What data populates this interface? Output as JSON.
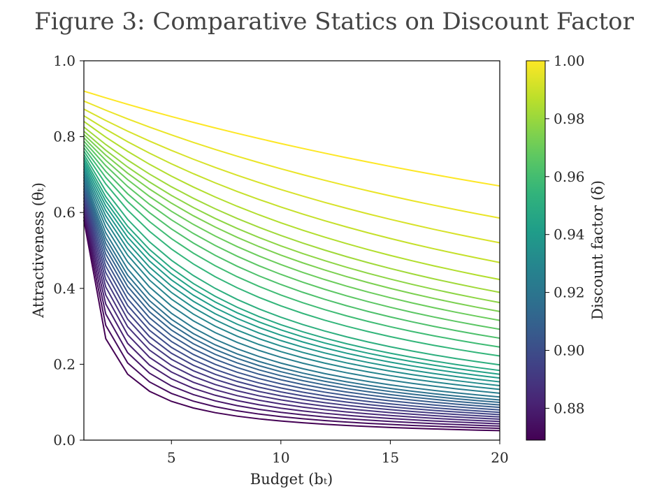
{
  "chart_data": {
    "type": "line",
    "title": "Figure 3: Comparative Statics on Discount Factor",
    "xlabel": "Budget (bₜ)",
    "ylabel": "Attractiveness (θₜ)",
    "xlim": [
      1,
      20
    ],
    "ylim": [
      0,
      1
    ],
    "xticks": [
      "5",
      "10",
      "15",
      "20"
    ],
    "yticks": [
      "0.0",
      "0.2",
      "0.4",
      "0.6",
      "0.8",
      "1.0"
    ],
    "x": [
      1,
      2,
      3,
      4,
      5,
      6,
      7,
      8,
      9,
      10,
      11,
      12,
      13,
      14,
      15,
      16,
      17,
      18,
      19,
      20
    ],
    "series_parameter": "Discount factor (δ)",
    "delta_range": [
      0.869,
      1.0
    ],
    "series_count": 36,
    "series_by_delta": [
      {
        "delta": 1.0,
        "y_at_x1": 0.92,
        "y_at_x20": 0.67
      },
      {
        "delta": 0.995,
        "y_at_x1": 0.885,
        "y_at_x20": 0.557
      },
      {
        "delta": 0.99,
        "y_at_x1": 0.86,
        "y_at_x20": 0.483
      },
      {
        "delta": 0.985,
        "y_at_x1": 0.84,
        "y_at_x20": 0.423
      },
      {
        "delta": 0.98,
        "y_at_x1": 0.82,
        "y_at_x20": 0.378
      },
      {
        "delta": 0.95,
        "y_at_x1": 0.75,
        "y_at_x20": 0.19
      },
      {
        "delta": 0.92,
        "y_at_x1": 0.69,
        "y_at_x20": 0.11
      },
      {
        "delta": 0.9,
        "y_at_x1": 0.65,
        "y_at_x20": 0.075
      },
      {
        "delta": 0.869,
        "y_at_x1": 0.58,
        "y_at_x20": 0.025
      }
    ],
    "colorbar": {
      "label": "Discount factor (δ)",
      "colormap": "viridis",
      "range": [
        0.869,
        1.0
      ],
      "ticks": [
        "0.88",
        "0.90",
        "0.92",
        "0.94",
        "0.96",
        "0.98",
        "1.00"
      ]
    },
    "grid": false,
    "legend": "none"
  }
}
